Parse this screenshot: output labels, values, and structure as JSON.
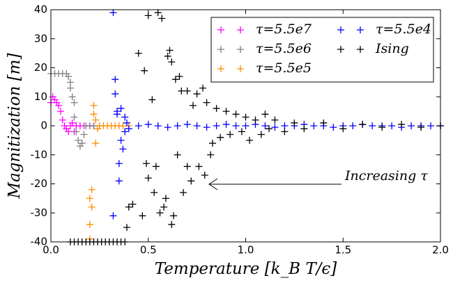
{
  "chart_data": {
    "type": "scatter",
    "xlabel": "Temperature [k_B T/ϵ]",
    "ylabel": "Magnitization [m]",
    "annotation": "Increasing τ",
    "xlim": [
      0,
      2
    ],
    "ylim": [
      -40,
      40
    ],
    "xticks": [
      {
        "value": 0,
        "label": "0.0"
      },
      0.5,
      {
        "value": 1,
        "label": "1.0"
      },
      1.5,
      {
        "value": 2,
        "label": "2.0"
      }
    ],
    "yticks": [
      -40,
      -30,
      -20,
      -10,
      0,
      10,
      20,
      30,
      40
    ],
    "legend": "upper right",
    "series": [
      {
        "name": "τ=5.5e7",
        "color": "#ff00ff",
        "x": [
          0.0,
          0.01,
          0.02,
          0.03,
          0.04,
          0.05,
          0.06,
          0.07,
          0.08,
          0.09,
          0.1,
          0.11,
          0.12,
          0.13,
          0.15,
          0.17,
          0.2,
          0.22
        ],
        "values": [
          8,
          10,
          9,
          8,
          7,
          5,
          2,
          0,
          -1,
          -2,
          0,
          1,
          -2,
          0,
          0,
          0,
          0,
          0
        ]
      },
      {
        "name": "τ=5.5e6",
        "color": "#808080",
        "x": [
          0.0,
          0.02,
          0.04,
          0.06,
          0.08,
          0.09,
          0.1,
          0.1,
          0.11,
          0.12,
          0.12,
          0.13,
          0.14,
          0.15,
          0.16,
          0.17,
          0.18,
          0.2,
          0.22
        ],
        "values": [
          18,
          18,
          18,
          18,
          18,
          17,
          15,
          13,
          10,
          8,
          3,
          -2,
          -5,
          -7,
          -6,
          -3,
          0,
          0,
          0
        ]
      },
      {
        "name": "τ=5.5e5",
        "color": "#ff8c00",
        "x": [
          0.2,
          0.2,
          0.2,
          0.21,
          0.21,
          0.22,
          0.22,
          0.23,
          0.23,
          0.24,
          0.25,
          0.27,
          0.29,
          0.31,
          0.33,
          0.35,
          0.37,
          0.4
        ],
        "values": [
          -39,
          -34,
          -25,
          -28,
          -22,
          7,
          4,
          -6,
          2,
          -1,
          0,
          0,
          0,
          0,
          0,
          0,
          0,
          0
        ]
      },
      {
        "name": "τ=5.5e4",
        "color": "#0000ff",
        "x": [
          0.32,
          0.32,
          0.33,
          0.33,
          0.34,
          0.34,
          0.35,
          0.35,
          0.36,
          0.36,
          0.37,
          0.38,
          0.38,
          0.39,
          0.4,
          0.45,
          0.5,
          0.55,
          0.6,
          0.65,
          0.7,
          0.75,
          0.8,
          0.85,
          0.9,
          0.95,
          1.0,
          1.05,
          1.1,
          1.15,
          1.2,
          1.25,
          1.3,
          1.35,
          1.4,
          1.45,
          1.5,
          1.55,
          1.6,
          1.65,
          1.7,
          1.75,
          1.8,
          1.85,
          1.9,
          1.95,
          2.0
        ],
        "values": [
          39,
          -31,
          16,
          11,
          5,
          4,
          -19,
          -13,
          6,
          -5,
          -8,
          3,
          -2,
          1,
          -1,
          0,
          0.5,
          0,
          -0.5,
          0,
          0.5,
          0,
          -0.5,
          0,
          0.5,
          0,
          0,
          0.5,
          0,
          -0.5,
          0,
          0,
          0.5,
          0,
          0,
          -0.5,
          0,
          0,
          0.5,
          0,
          0,
          0,
          -0.5,
          0,
          0,
          0,
          0
        ]
      },
      {
        "name": "Ising",
        "color": "#000000",
        "x": [
          0.1,
          0.12,
          0.14,
          0.16,
          0.18,
          0.2,
          0.22,
          0.24,
          0.26,
          0.28,
          0.3,
          0.32,
          0.34,
          0.36,
          0.38,
          0.39,
          0.4,
          0.42,
          0.45,
          0.47,
          0.48,
          0.49,
          0.5,
          0.5,
          0.52,
          0.53,
          0.54,
          0.55,
          0.56,
          0.57,
          0.58,
          0.59,
          0.6,
          0.61,
          0.62,
          0.62,
          0.63,
          0.64,
          0.65,
          0.66,
          0.67,
          0.68,
          0.7,
          0.7,
          0.72,
          0.73,
          0.75,
          0.76,
          0.78,
          0.79,
          0.8,
          0.82,
          0.83,
          0.85,
          0.87,
          0.9,
          0.92,
          0.95,
          0.98,
          1.0,
          1.02,
          1.05,
          1.08,
          1.1,
          1.12,
          1.15,
          1.2,
          1.25,
          1.3,
          1.4,
          1.5,
          1.6,
          1.7,
          1.8,
          1.9,
          2.0
        ],
        "values": [
          -40,
          -40,
          -40,
          -40,
          -40,
          -40,
          -40,
          -40,
          -40,
          -40,
          -40,
          -40,
          -40,
          -40,
          -40,
          -35,
          -28,
          -27,
          25,
          -31,
          19,
          -13,
          38,
          -18,
          9,
          -23,
          -14,
          39,
          -30,
          37,
          -28,
          -25,
          24,
          26,
          -34,
          22,
          -31,
          16,
          -10,
          17,
          12,
          -23,
          -14,
          12,
          -19,
          7,
          11,
          -14,
          13,
          -17,
          8,
          -10,
          -6,
          6,
          -4,
          5,
          -3,
          4,
          -2,
          3,
          -5,
          2,
          -3,
          4,
          -1,
          2,
          -2,
          1,
          -1,
          1,
          -1,
          0.5,
          -0.5,
          0.5,
          -0.5,
          0
        ]
      }
    ]
  }
}
